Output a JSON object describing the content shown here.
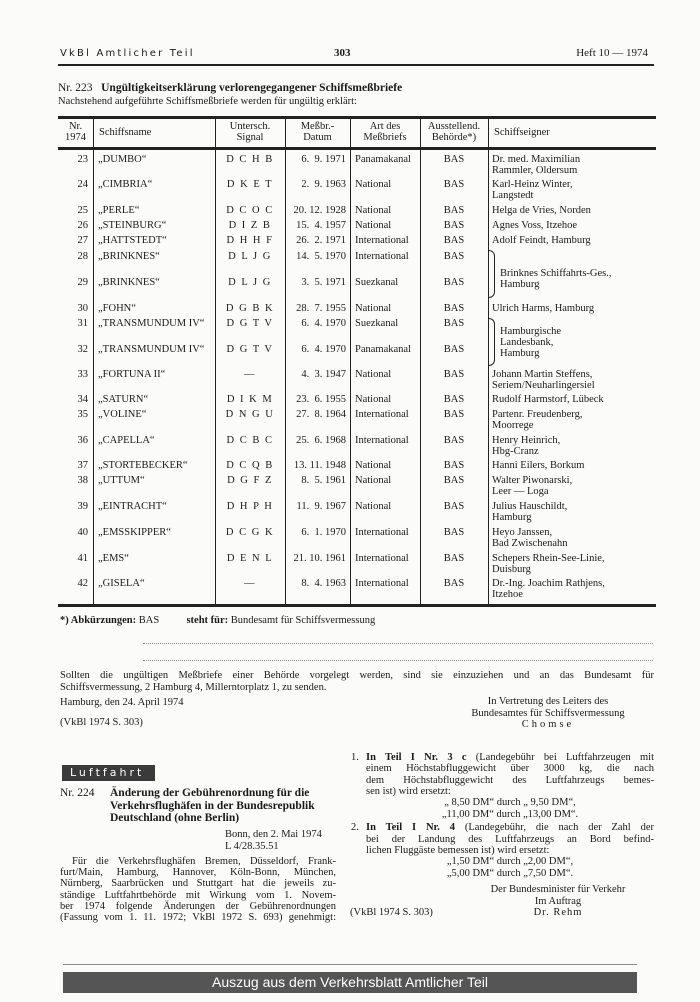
{
  "header": {
    "left": "VkBl Amtlicher Teil",
    "page": "303",
    "right": "Heft 10 — 1974"
  },
  "notice223": {
    "number": "Nr. 223",
    "title": "Ungültigkeitserklärung verlorengegangener Schiffsmeßbriefe",
    "intro": "Nachstehend aufgeführte Schiffsmeßbriefe werden für ungültig erklärt:",
    "columns": [
      [
        "Nr.",
        "1974"
      ],
      [
        "Schiffsname"
      ],
      [
        "Untersch.",
        "Signal"
      ],
      [
        "Meßbr.-",
        "Datum"
      ],
      [
        "Art des",
        "Meßbriefs"
      ],
      [
        "Ausstellend.",
        "Behörde*)"
      ],
      [
        "Schiffseigner"
      ]
    ],
    "rows": [
      {
        "nr": "23",
        "name": "„DUMBO“",
        "signal": "D C H B",
        "date": "6.  9. 1971",
        "type": "Panamakanal",
        "authority": "BAS",
        "owner": [
          "Dr. med. Maximilian",
          "Rammler, Oldersum"
        ]
      },
      {
        "nr": "24",
        "name": "„CIMBRIA“",
        "signal": "D K E T",
        "date": "2.  9. 1963",
        "type": "National",
        "authority": "BAS",
        "owner": [
          "Karl-Heinz Winter,",
          "Langstedt"
        ]
      },
      {
        "nr": "25",
        "name": "„PERLE“",
        "signal": "D C O C",
        "date": "20. 12. 1928",
        "type": "National",
        "authority": "BAS",
        "owner": [
          "Helga de Vries, Norden"
        ]
      },
      {
        "nr": "26",
        "name": "„STEINBURG“",
        "signal": "D I Z B",
        "date": "15.  4. 1957",
        "type": "National",
        "authority": "BAS",
        "owner": [
          "Agnes Voss, Itzehoe"
        ]
      },
      {
        "nr": "27",
        "name": "„HATTSTEDT“",
        "signal": "D H H F",
        "date": "26.  2. 1971",
        "type": "International",
        "authority": "BAS",
        "owner": [
          "Adolf Feindt, Hamburg"
        ]
      },
      {
        "nr": "28",
        "name": "„BRINKNES“",
        "signal": "D L J G",
        "date": "14.  5. 1970",
        "type": "International",
        "authority": "BAS",
        "owner": []
      },
      {
        "nr": "29",
        "name": "„BRINKNES“",
        "signal": "D L J G",
        "date": "3.  5. 1971",
        "type": "Suezkanal",
        "authority": "BAS",
        "owner": []
      },
      {
        "nr": "30",
        "name": "„FOHN“",
        "signal": "D G B K",
        "date": "28.  7. 1955",
        "type": "National",
        "authority": "BAS",
        "owner": [
          "Ulrich Harms, Hamburg"
        ]
      },
      {
        "nr": "31",
        "name": "„TRANSMUNDUM IV“",
        "signal": "D G T V",
        "date": "6.  4. 1970",
        "type": "Suezkanal",
        "authority": "BAS",
        "owner": []
      },
      {
        "nr": "32",
        "name": "„TRANSMUNDUM IV“",
        "signal": "D G T V",
        "date": "6.  4. 1970",
        "type": "Panamakanal",
        "authority": "BAS",
        "owner": []
      },
      {
        "nr": "33",
        "name": "„FORTUNA II“",
        "signal": "—",
        "date": "4.  3. 1947",
        "type": "National",
        "authority": "BAS",
        "owner": [
          "Johann Martin Steffens,",
          "Seriem/Neuharlingersiel"
        ]
      },
      {
        "nr": "34",
        "name": "„SATURN“",
        "signal": "D I K M",
        "date": "23.  6. 1955",
        "type": "National",
        "authority": "BAS",
        "owner": [
          "Rudolf Harmstorf, Lübeck"
        ]
      },
      {
        "nr": "35",
        "name": "„VOLINE“",
        "signal": "D N G U",
        "date": "27.  8. 1964",
        "type": "International",
        "authority": "BAS",
        "owner": [
          "Partenr. Freudenberg,",
          "Moorrege"
        ]
      },
      {
        "nr": "36",
        "name": "„CAPELLA“",
        "signal": "D C B C",
        "date": "25.  6. 1968",
        "type": "International",
        "authority": "BAS",
        "owner": [
          "Henry Heinrich,",
          "Hbg-Cranz"
        ]
      },
      {
        "nr": "37",
        "name": "„STORTEBECKER“",
        "signal": "D C Q B",
        "date": "13. 11. 1948",
        "type": "National",
        "authority": "BAS",
        "owner": [
          "Hanni Eilers, Borkum"
        ]
      },
      {
        "nr": "38",
        "name": "„UTTUM“",
        "signal": "D G F Z",
        "date": "8.  5. 1961",
        "type": "National",
        "authority": "BAS",
        "owner": [
          "Walter Piwonarski,",
          "Leer — Loga"
        ]
      },
      {
        "nr": "39",
        "name": "„EINTRACHT“",
        "signal": "D H P H",
        "date": "11.  9. 1967",
        "type": "National",
        "authority": "BAS",
        "owner": [
          "Julius Hauschildt,",
          "Hamburg"
        ]
      },
      {
        "nr": "40",
        "name": "„EMSSKIPPER“",
        "signal": "D C G K",
        "date": "6.  1. 1970",
        "type": "International",
        "authority": "BAS",
        "owner": [
          "Heyo Janssen,",
          "Bad Zwischenahn"
        ]
      },
      {
        "nr": "41",
        "name": "„EMS“",
        "signal": "D E N L",
        "date": "21. 10. 1961",
        "type": "International",
        "authority": "BAS",
        "owner": [
          "Schepers Rhein-See-Linie,",
          "Duisburg"
        ]
      },
      {
        "nr": "42",
        "name": "„GISELA“",
        "signal": "—",
        "date": "8.  4. 1963",
        "type": "International",
        "authority": "BAS",
        "owner": [
          "Dr.-Ing. Joachim Rathjens,",
          "Itzehoe"
        ]
      }
    ],
    "grouped_owners": [
      {
        "rows": [
          "28",
          "29"
        ],
        "owner": [
          "Brinknes Schiffahrts-Ges.,",
          "Hamburg"
        ]
      },
      {
        "rows": [
          "31",
          "32"
        ],
        "owner": [
          "Hamburgische",
          "Landesbank,",
          "Hamburg"
        ]
      }
    ],
    "footnote": {
      "label": "*) Abkürzungen:",
      "abbr": "BAS",
      "stands_for_label": "steht für:",
      "meaning": "Bundesamt für Schiffsvermessung"
    },
    "instruction_lines": [
      "Sollten die ungültigen Meßbriefe einer Behörde vorgelegt werden, sind sie einzuziehen und an das Bundesamt für",
      "Schiffsvermessung, 2 Hamburg 4, Millerntorplatz 1, zu senden."
    ],
    "place_date": "Hamburg, den 24. April 1974",
    "signature": [
      "In Vertretung des Leiters des",
      "Bundesamtes für Schiffsvermessung",
      "Chomse"
    ],
    "reference": "(VkBl 1974 S. 303)"
  },
  "section_label": "Luftfahrt",
  "notice224": {
    "number": "Nr. 224",
    "title_lines": [
      "Änderung der Gebührenordnung für die",
      "Verkehrsflughäfen in der Bundesrepublik",
      "Deutschland (ohne Berlin)"
    ],
    "place_date": "Bonn, den 2. Mai 1974",
    "file_ref": "L 4/28.35.51",
    "body_lines": [
      "Für die Verkehrsflughäfen Bremen, Düsseldorf, Frank-",
      "furt/Main, Hamburg, Hannover, Köln-Bonn, München,",
      "Nürnberg, Saarbrücken und Stuttgart hat die jeweils zu-",
      "ständige Luftfahrtbehörde mit Wirkung vom 1. Novem-",
      "ber 1974 folgende Änderungen der Gebührenordnungen",
      "(Fassung vom 1. 11. 1972; VkBl 1972 S. 693) genehmigt:"
    ],
    "items": [
      {
        "num": "1.",
        "bold": "In Teil I Nr. 3 c",
        "lines": [
          "(Landegebühr bei Luftfahrzeugen mit",
          "einem Höchstabfluggewicht über 3000 kg, die nach",
          "dem Höchstabfluggewicht des Luftfahrzeugs bemes-",
          "sen ist) wird ersetzt:"
        ],
        "replacements": [
          "„ 8,50 DM“ durch „ 9,50 DM“,",
          "„11,00 DM“ durch „13,00 DM“."
        ]
      },
      {
        "num": "2.",
        "bold": "In Teil I Nr. 4",
        "lines": [
          "(Landegebühr, die nach der Zahl der",
          "bei der Landung des Luftfahrzeugs an Bord befind-",
          "lichen Fluggäste bemessen ist) wird ersetzt:"
        ],
        "replacements": [
          "„1,50 DM“ durch „2,00 DM“,",
          "„5,00 DM“ durch „7,50 DM“."
        ]
      }
    ],
    "signature": [
      "Der Bundesminister für Verkehr",
      "Im Auftrag",
      "Dr. Rehm"
    ],
    "reference": "(VkBl 1974 S. 303)"
  },
  "footer": "Auszug aus dem Verkehrsblatt Amtlicher Teil",
  "colors": {
    "footer_bg": "#555555",
    "section_bg": "#3a3a3a"
  }
}
